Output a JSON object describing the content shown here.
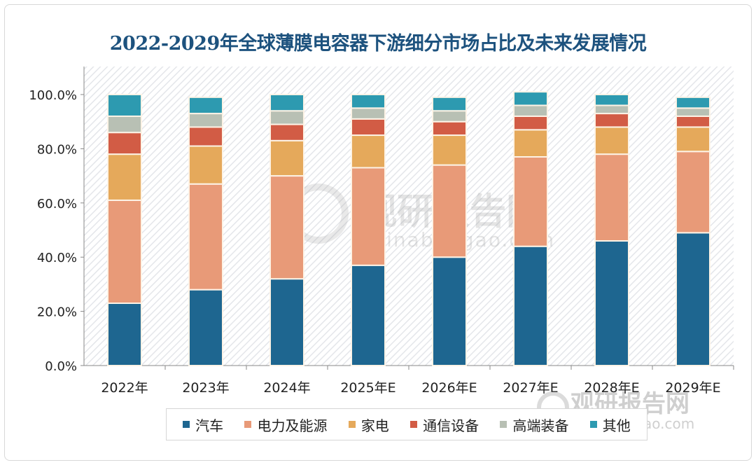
{
  "chart_data": {
    "type": "bar",
    "stacked": true,
    "title": "2022-2029年全球薄膜电容器下游细分市场占比及未来发展情况",
    "xlabel": "",
    "ylabel": "",
    "categories": [
      "2022年",
      "2023年",
      "2024年",
      "2025年E",
      "2026年E",
      "2027年E",
      "2028年E",
      "2029年E"
    ],
    "ylim": [
      0,
      100
    ],
    "yticks": [
      "0.0%",
      "20.0%",
      "40.0%",
      "60.0%",
      "80.0%",
      "100.0%"
    ],
    "ytick_values": [
      0,
      20,
      40,
      60,
      80,
      100
    ],
    "legend_position": "bottom",
    "series": [
      {
        "name": "汽车",
        "color": "#1e6690",
        "values": [
          23,
          28,
          32,
          37,
          40,
          44,
          46,
          49
        ]
      },
      {
        "name": "电力及能源",
        "color": "#e89a78",
        "values": [
          38,
          39,
          38,
          36,
          34,
          33,
          32,
          30
        ]
      },
      {
        "name": "家电",
        "color": "#e5a95b",
        "values": [
          17,
          14,
          13,
          12,
          11,
          10,
          10,
          9
        ]
      },
      {
        "name": "通信设备",
        "color": "#d25c45",
        "values": [
          8,
          7,
          6,
          6,
          5,
          5,
          5,
          4
        ]
      },
      {
        "name": "高端装备",
        "color": "#b8c0b4",
        "values": [
          6,
          5,
          5,
          4,
          4,
          4,
          3,
          3
        ]
      },
      {
        "name": "其他",
        "color": "#2d9ab0",
        "values": [
          8,
          6,
          6,
          5,
          5,
          5,
          4,
          4
        ]
      }
    ]
  },
  "watermark": {
    "text": "观研报告网",
    "url_text": "chinabaogao.com"
  }
}
